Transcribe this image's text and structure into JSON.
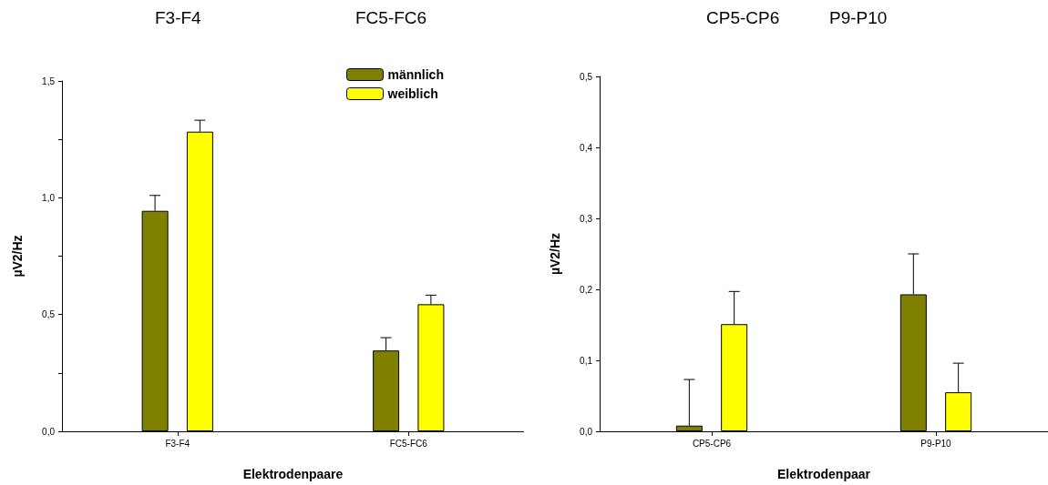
{
  "chart_data": [
    {
      "type": "bar",
      "annotations": [
        "F3-F4",
        "FC5-FC6"
      ],
      "xlabel": "Elektrodenpaare",
      "ylabel": "µV2/Hz",
      "categories": [
        "F3-F4",
        "FC5-FC6"
      ],
      "series": [
        {
          "name": "männlich",
          "color": "#808000",
          "values": [
            0.944,
            0.346
          ],
          "errors": [
            [
              0.944,
              1.01
            ],
            [
              0.346,
              0.401
            ]
          ]
        },
        {
          "name": "weiblich",
          "color": "#ffff00",
          "values": [
            1.283,
            0.544
          ],
          "errors": [
            [
              1.283,
              1.332
            ],
            [
              0.544,
              0.583
            ]
          ]
        }
      ],
      "ylim": [
        0,
        1.5
      ],
      "yticks": [
        {
          "value": 0,
          "label": "0,0"
        },
        {
          "value": 0.25,
          "label": null
        },
        {
          "value": 0.5,
          "label": "0,5"
        },
        {
          "value": 0.75,
          "label": null
        },
        {
          "value": 1,
          "label": "1,0"
        },
        {
          "value": 1.25,
          "label": null
        },
        {
          "value": 1.5,
          "label": "1,5"
        }
      ],
      "legend": "top right",
      "grid": false
    },
    {
      "type": "bar",
      "annotations": [
        "CP5-CP6",
        "P9-P10"
      ],
      "xlabel": "Elektrodenpaar",
      "ylabel": "µV2/Hz",
      "categories": [
        "CP5-CP6",
        "P9-P10"
      ],
      "series": [
        {
          "color": "#808000",
          "values": [
            0.008,
            0.193
          ],
          "errors": [
            [
              0.008,
              0.073
            ],
            [
              0.193,
              0.25
            ]
          ]
        },
        {
          "color": "#ffff00",
          "values": [
            0.151,
            0.055
          ],
          "errors": [
            [
              0.151,
              0.197
            ],
            [
              0.055,
              0.096
            ]
          ]
        }
      ],
      "ylim": [
        0,
        0.5
      ],
      "yticks": [
        {
          "value": 0,
          "label": "0,0"
        },
        {
          "value": 0.1,
          "label": "0,1"
        },
        {
          "value": 0.2,
          "label": "0,2"
        },
        {
          "value": 0.3,
          "label": "0,3"
        },
        {
          "value": 0.4,
          "label": "0,4"
        },
        {
          "value": 0.5,
          "label": "0,5"
        }
      ],
      "legend": false,
      "grid": false
    }
  ]
}
